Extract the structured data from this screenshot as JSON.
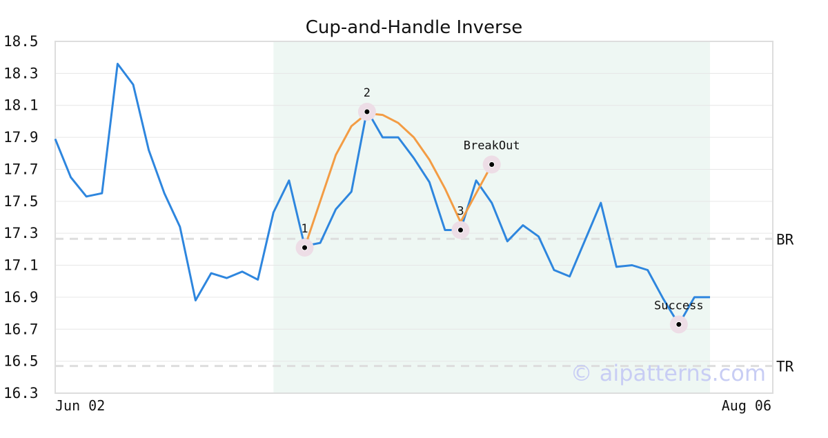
{
  "chart_data": {
    "type": "line",
    "title": "Cup-and-Handle Inverse",
    "xlabel": "",
    "ylabel": "",
    "x_tick_labels": [
      "Jun 02",
      "Aug 06"
    ],
    "ylim": [
      16.3,
      18.5
    ],
    "yticks": [
      "16.3",
      "16.5",
      "16.7",
      "16.9",
      "17.1",
      "17.3",
      "17.5",
      "17.7",
      "17.9",
      "18.1",
      "18.3",
      "18.5"
    ],
    "grid": "horizontal",
    "colors": {
      "price": "#2e86de",
      "pattern": "#f39c44",
      "highlight_band": "#eef7f3",
      "reference_line": "#dddddd",
      "marker_halo": "#eddde6",
      "marker_dot": "#000000",
      "watermark": "#c8cdf4"
    },
    "series": [
      {
        "role": "price",
        "values": [
          17.89,
          17.65,
          17.53,
          17.55,
          18.36,
          18.23,
          17.82,
          17.55,
          17.34,
          16.88,
          17.05,
          17.02,
          17.06,
          17.01,
          17.43,
          17.63,
          17.22,
          17.24,
          17.45,
          17.56,
          18.07,
          17.9,
          17.9,
          17.77,
          17.62,
          17.32,
          17.32,
          17.63,
          17.49,
          17.25,
          17.35,
          17.28,
          17.07,
          17.03,
          17.26,
          17.49,
          17.09,
          17.1,
          17.07,
          16.89,
          16.73,
          16.9,
          16.9
        ]
      },
      {
        "role": "pattern",
        "x": [
          16,
          17,
          18,
          19,
          20,
          21,
          22,
          23,
          24,
          25,
          26,
          27,
          28
        ],
        "values": [
          17.21,
          17.5,
          17.79,
          17.97,
          18.05,
          18.04,
          17.99,
          17.9,
          17.76,
          17.58,
          17.37,
          17.55,
          17.73
        ]
      }
    ],
    "highlight_range": [
      14,
      42
    ],
    "reference_lines": [
      {
        "label": "BR",
        "value": 17.265
      },
      {
        "label": "TR",
        "value": 16.47
      }
    ],
    "markers": [
      {
        "label": "1",
        "x": 16,
        "y": 17.21
      },
      {
        "label": "2",
        "x": 20,
        "y": 18.06
      },
      {
        "label": "3",
        "x": 26,
        "y": 17.32
      },
      {
        "label": "BreakOut",
        "x": 28,
        "y": 17.73
      },
      {
        "label": "Success",
        "x": 40,
        "y": 16.73
      }
    ],
    "watermark": "© aipatterns.com"
  }
}
